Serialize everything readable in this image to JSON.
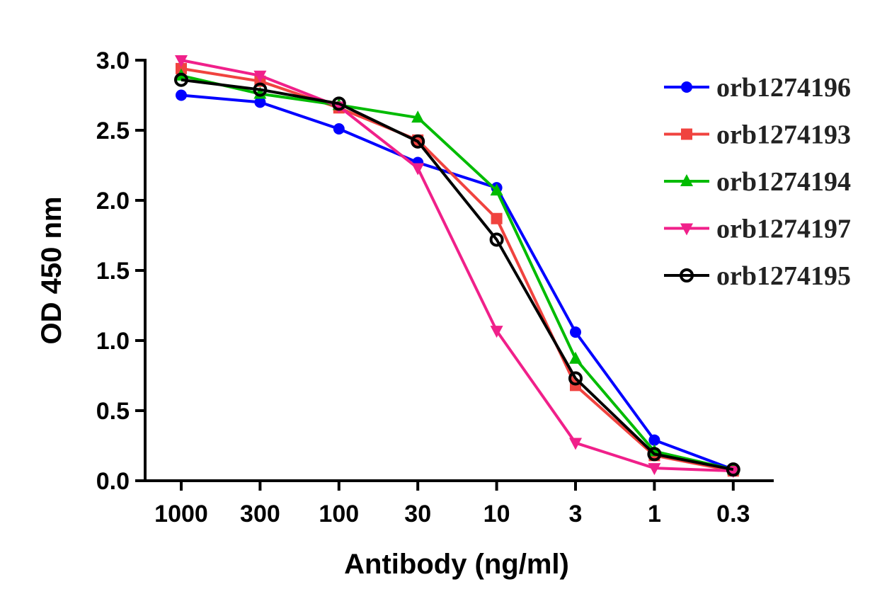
{
  "chart_data": {
    "type": "line",
    "title": "",
    "xlabel": "Antibody (ng/ml)",
    "ylabel": "OD 450 nm",
    "categories": [
      "1000",
      "300",
      "100",
      "30",
      "10",
      "3",
      "1",
      "0.3"
    ],
    "ylim": [
      0,
      3.0
    ],
    "yticks": [
      "0.0",
      "0.5",
      "1.0",
      "1.5",
      "2.0",
      "2.5",
      "3.0"
    ],
    "grid": false,
    "legend_position": "top-right",
    "series": [
      {
        "name": "orb1274196",
        "color": "#0000ff",
        "marker": "circle",
        "values": [
          2.75,
          2.7,
          2.51,
          2.27,
          2.09,
          1.06,
          0.29,
          0.08
        ]
      },
      {
        "name": "orb1274193",
        "color": "#f0433f",
        "marker": "square",
        "values": [
          2.94,
          2.85,
          2.66,
          2.43,
          1.87,
          0.68,
          0.18,
          0.07
        ]
      },
      {
        "name": "orb1274194",
        "color": "#00bb00",
        "marker": "triangle-up",
        "values": [
          2.89,
          2.76,
          2.68,
          2.59,
          2.07,
          0.87,
          0.21,
          0.08
        ]
      },
      {
        "name": "orb1274197",
        "color": "#f0208a",
        "marker": "triangle-down",
        "values": [
          3.0,
          2.89,
          2.67,
          2.23,
          1.07,
          0.27,
          0.09,
          0.07
        ]
      },
      {
        "name": "orb1274195",
        "color": "#000000",
        "marker": "open-circle",
        "values": [
          2.86,
          2.79,
          2.69,
          2.42,
          1.72,
          0.73,
          0.19,
          0.08
        ]
      }
    ]
  }
}
